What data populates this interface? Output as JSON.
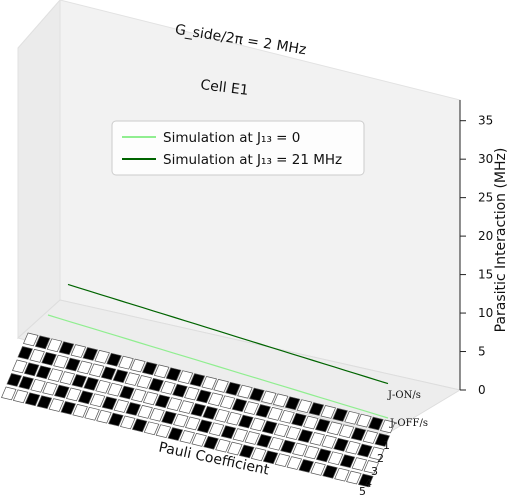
{
  "chart_data": {
    "type": "3d-line",
    "title": "",
    "annotations": {
      "coupling": "G_side/2π = 2 MHz",
      "cell": "Cell E1"
    },
    "zlabel": "Parasitic Interaction (MHz)",
    "zlim": [
      0,
      36
    ],
    "zticks": [
      "0",
      "5",
      "10",
      "15",
      "20",
      "25",
      "30",
      "35"
    ],
    "xlabel": "Pauli Coefficient",
    "ylabel": "",
    "y_tick_labels": [
      "J-ON/s",
      "J-OFF/s"
    ],
    "qubit_labels": [
      "1",
      "2",
      "3",
      "4",
      "5"
    ],
    "legend": {
      "placement": "upper-center",
      "entries": [
        {
          "label": "Simulation at J₁₃ = 0",
          "color": "#90ee90"
        },
        {
          "label": "Simulation at J₁₃ = 21 MHz",
          "color": "#006400"
        }
      ]
    },
    "series": [
      {
        "name": "Simulation at J₁₃ = 0",
        "row": "J-OFF/s",
        "color": "#90ee90",
        "values": [
          0.0,
          0.0,
          0.0,
          0.0,
          0.0,
          0.0,
          0.0,
          0.0,
          0.0,
          0.0,
          0.0,
          0.0,
          0.0,
          0.0,
          0.0,
          0.0,
          0.0,
          0.0,
          0.0,
          0.0,
          0.0,
          0.0,
          0.0,
          0.0,
          0.0,
          0.0,
          0.0,
          0.0,
          0.0,
          0.0,
          0.0
        ]
      },
      {
        "name": "Simulation at J₁₃ = 21 MHz",
        "row": "J-ON/s",
        "color": "#006400",
        "values": [
          13.0,
          12.6,
          12.2,
          11.8,
          11.4,
          11.0,
          10.6,
          10.2,
          9.8,
          9.4,
          9.0,
          8.6,
          8.2,
          7.8,
          7.4,
          7.0,
          6.6,
          6.2,
          5.8,
          5.4,
          5.0,
          4.6,
          4.2,
          3.8,
          3.4,
          3.0,
          2.6,
          2.2,
          1.8,
          1.4,
          1.0
        ]
      }
    ],
    "pauli_pattern": [
      [
        0,
        1,
        0,
        1,
        0,
        1,
        0,
        1,
        0,
        0,
        1,
        0,
        1,
        0,
        1,
        0,
        0,
        1,
        0,
        1,
        0,
        0,
        1,
        0,
        1,
        0,
        1,
        0,
        0,
        1,
        0
      ],
      [
        1,
        0,
        1,
        0,
        1,
        0,
        0,
        1,
        1,
        0,
        0,
        1,
        0,
        1,
        0,
        1,
        0,
        0,
        1,
        0,
        1,
        0,
        0,
        1,
        0,
        1,
        0,
        0,
        1,
        0,
        1
      ],
      [
        0,
        1,
        1,
        0,
        0,
        1,
        1,
        0,
        0,
        1,
        0,
        0,
        1,
        0,
        0,
        1,
        1,
        0,
        0,
        1,
        0,
        1,
        0,
        0,
        1,
        0,
        0,
        1,
        0,
        1,
        0
      ],
      [
        1,
        1,
        0,
        0,
        1,
        0,
        1,
        0,
        1,
        0,
        1,
        0,
        0,
        1,
        0,
        0,
        1,
        0,
        1,
        0,
        0,
        1,
        0,
        1,
        0,
        0,
        1,
        0,
        1,
        0,
        0
      ],
      [
        0,
        0,
        1,
        1,
        0,
        1,
        0,
        0,
        0,
        1,
        0,
        1,
        0,
        0,
        1,
        0,
        0,
        1,
        0,
        0,
        1,
        0,
        1,
        0,
        0,
        1,
        0,
        1,
        0,
        0,
        1
      ]
    ],
    "grid": false
  }
}
